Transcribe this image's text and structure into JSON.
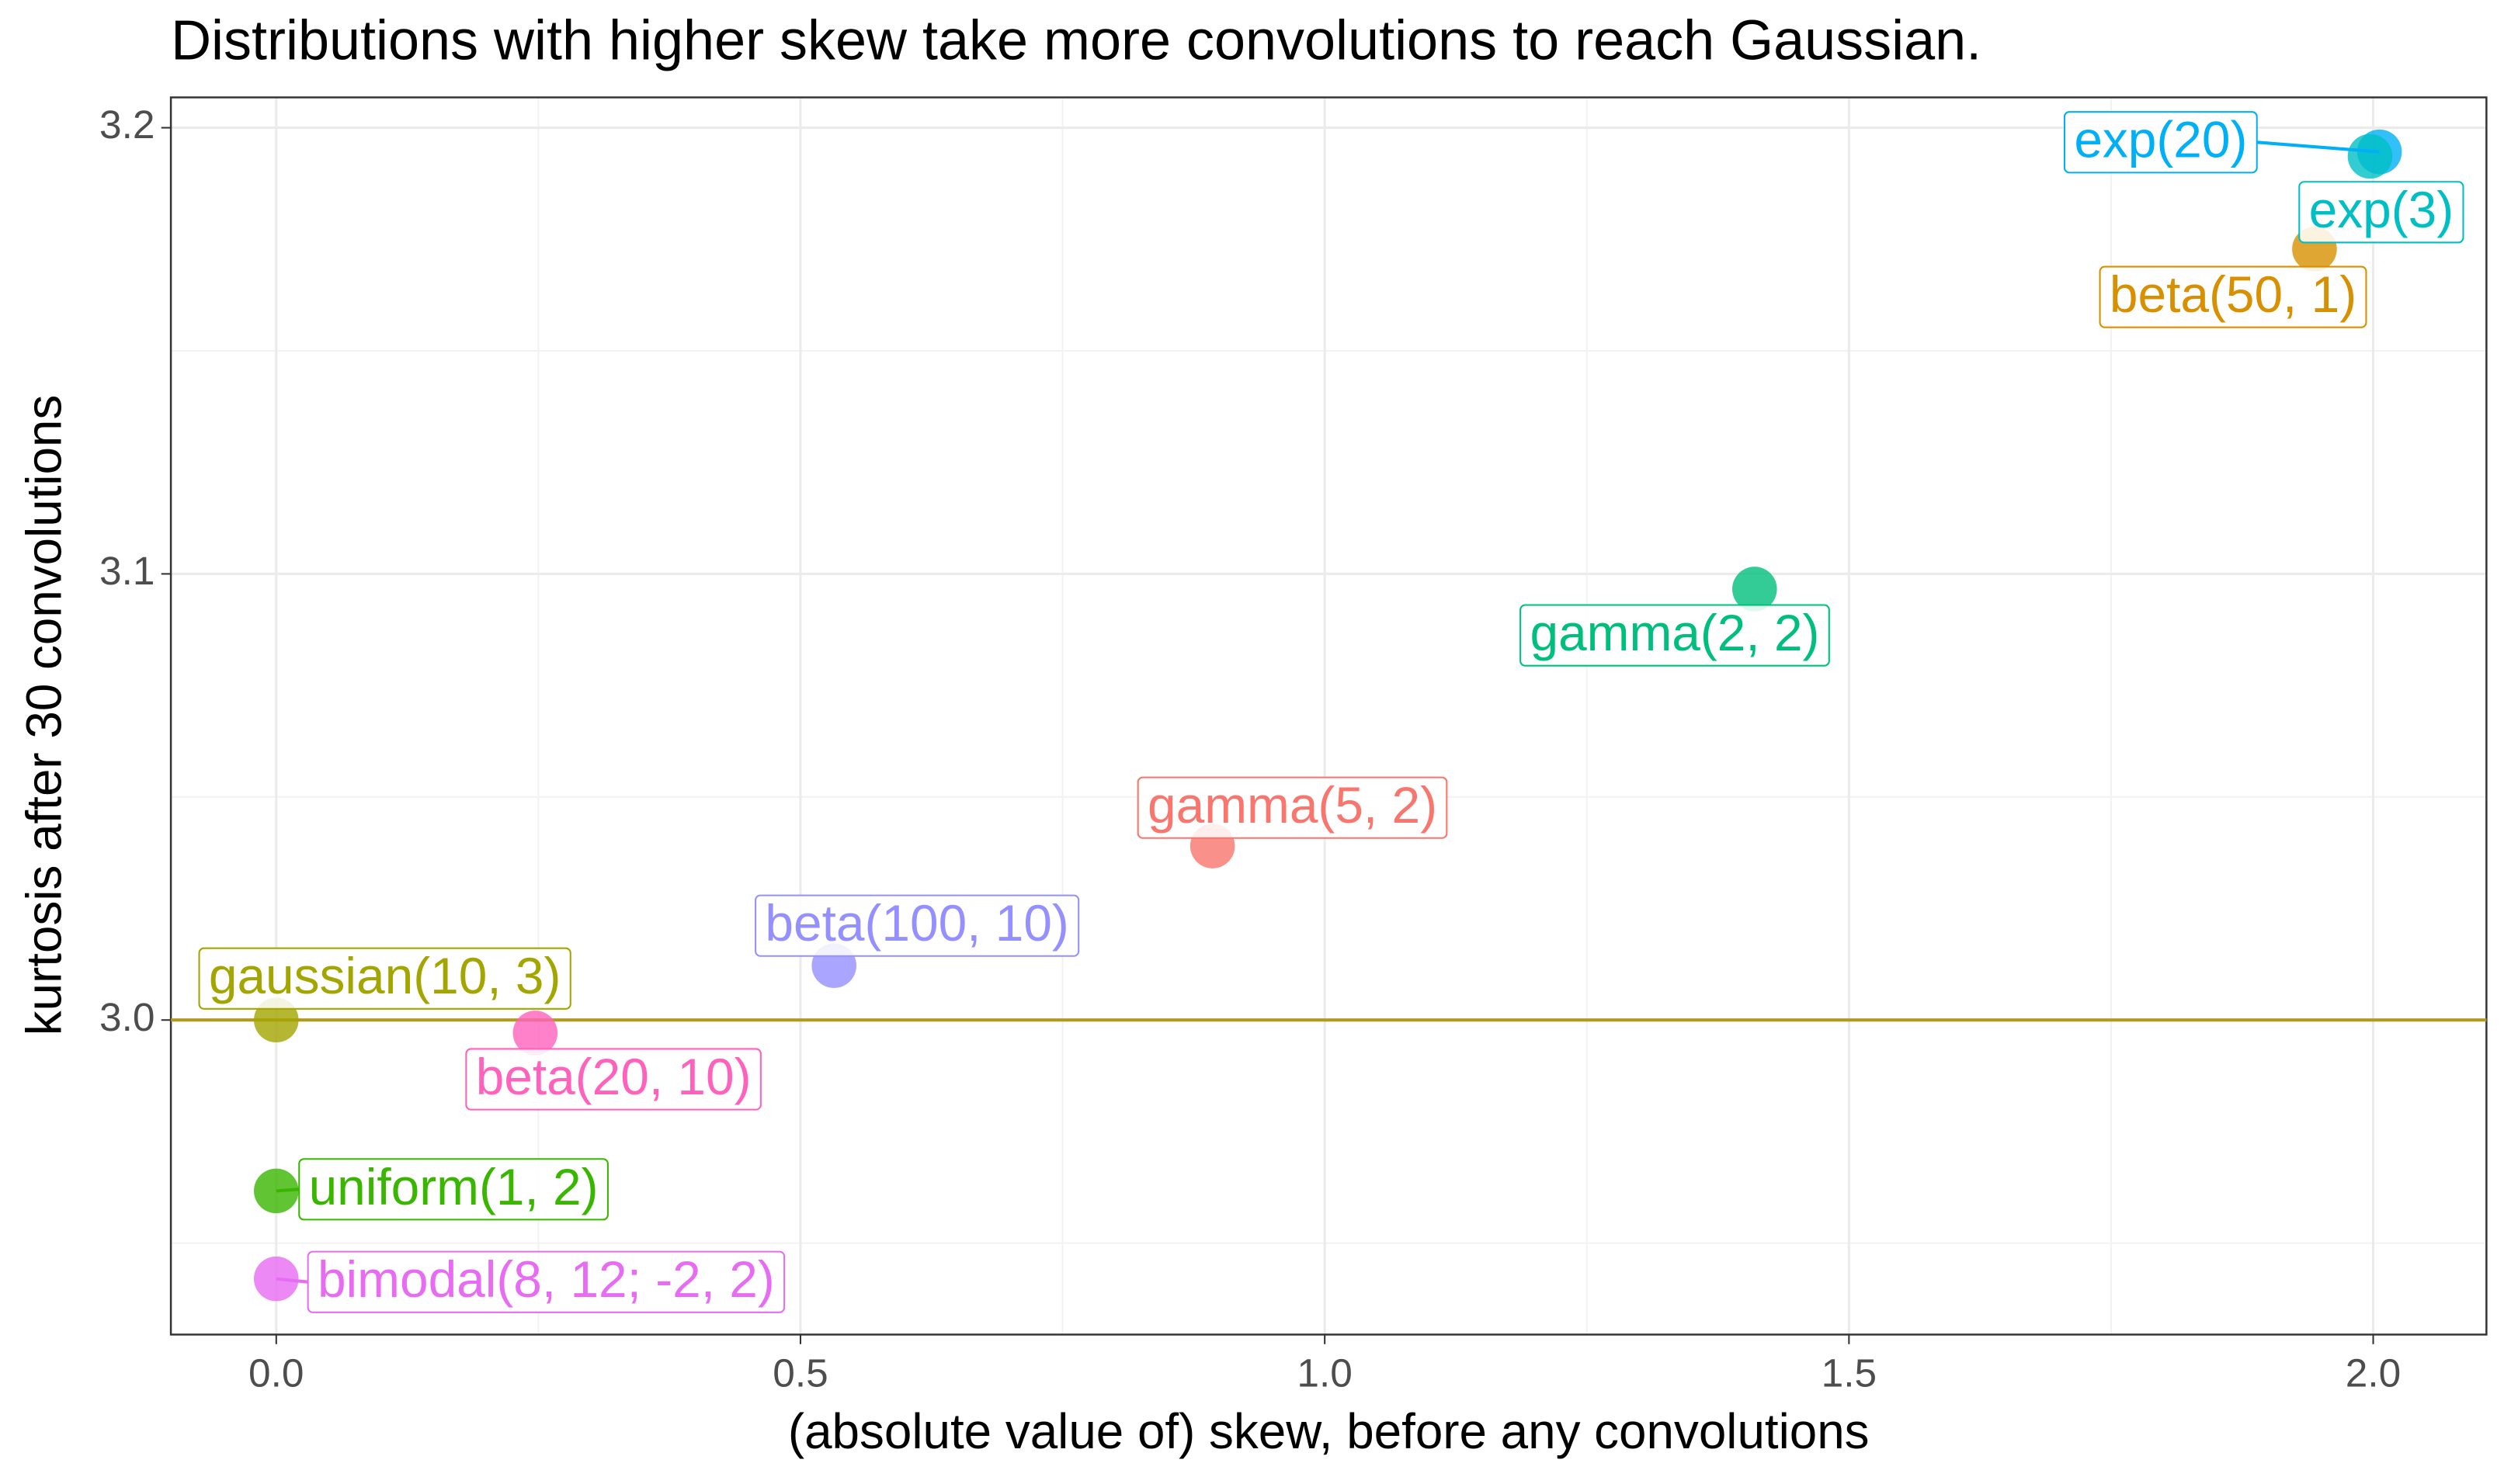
{
  "chart_data": {
    "type": "scatter",
    "title": "Distributions with higher skew take more convolutions to reach Gaussian.",
    "x_label": "(absolute value of) skew, before any convolutions",
    "y_label": "kurtosis after 30 convolutions",
    "series": [
      {
        "name": "exp(20)",
        "color": "#00B0F6",
        "x": [
          2.006
        ],
        "values": [
          3.1946
        ]
      },
      {
        "name": "exp(3)",
        "color": "#00BFC4",
        "x": [
          1.997
        ],
        "values": [
          3.1936
        ]
      },
      {
        "name": "beta(50, 1)",
        "color": "#D89000",
        "x": [
          1.944
        ],
        "values": [
          3.1728
        ]
      },
      {
        "name": "gamma(2, 2)",
        "color": "#00BF7D",
        "x": [
          1.41
        ],
        "values": [
          3.0966
        ]
      },
      {
        "name": "gamma(5, 2)",
        "color": "#F8766D",
        "x": [
          0.893
        ],
        "values": [
          3.039
        ]
      },
      {
        "name": "beta(100, 10)",
        "color": "#9590FF",
        "x": [
          0.532
        ],
        "values": [
          3.0122
        ]
      },
      {
        "name": "gaussian(10, 3)",
        "color": "#A3A500",
        "x": [
          0
        ],
        "values": [
          3.0
        ]
      },
      {
        "name": "beta(20, 10)",
        "color": "#FF62BC",
        "x": [
          0.247
        ],
        "values": [
          2.9971
        ]
      },
      {
        "name": "uniform(1, 2)",
        "color": "#39B600",
        "x": [
          0
        ],
        "values": [
          2.9617
        ]
      },
      {
        "name": "bimodal(8, 12; -2, 2)",
        "color": "#E76BF3",
        "x": [
          0
        ],
        "values": [
          2.942
        ]
      }
    ],
    "hline": 3.0,
    "hline_color": "#B09A20",
    "xlim": [
      -0.1005,
      2.108
    ],
    "ylim": [
      2.9295,
      3.2068
    ],
    "xticks": [
      {
        "value": 0,
        "label": "0.0"
      },
      0.5,
      {
        "value": 1,
        "label": "1.0"
      },
      1.5,
      {
        "value": 2,
        "label": "2.0"
      }
    ],
    "yticks": [
      {
        "value": 3,
        "label": "3.0"
      },
      3.1,
      3.2
    ],
    "grid": true
  }
}
